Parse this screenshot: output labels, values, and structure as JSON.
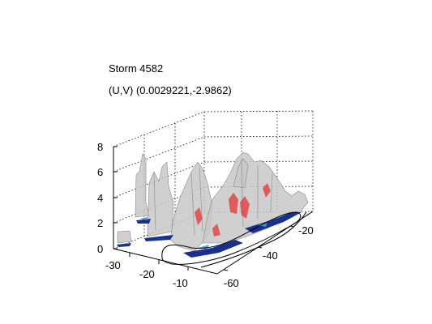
{
  "chart_data": {
    "type": "surface3d",
    "title": "Storm 4582",
    "subtitle": "(U,V) (0.0029221,-2.9862)",
    "xlabel": "",
    "ylabel": "",
    "zlabel": "",
    "x_ticks": [
      "-30",
      "-20",
      "-10"
    ],
    "y_ticks": [
      "-20",
      "-40",
      "-60"
    ],
    "z_ticks": [
      "0",
      "2",
      "4",
      "6",
      "8"
    ],
    "xlim": [
      -30,
      -5
    ],
    "ylim": [
      -65,
      -15
    ],
    "zlim": [
      0,
      8
    ],
    "grid": "dotted",
    "surface_color": "#c8c8c8",
    "highlight_color": "#e04040",
    "base_color": "#1a2f8f"
  }
}
